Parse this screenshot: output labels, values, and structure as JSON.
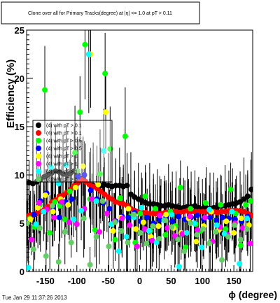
{
  "title": "Clone  over all for Primary Tracks(degree) at |η| <= 1.0 at pT > 0.11",
  "timestamp": "Tue Jan 29 11:37:26 2013",
  "chart_data": {
    "type": "scatter",
    "xlabel": "ϕ (degree)",
    "ylabel": "Efficiency (%)",
    "xlim": [
      -180,
      180
    ],
    "ylim": [
      0,
      25
    ],
    "x_ticks": [
      -150,
      -100,
      -50,
      0,
      50,
      100,
      150
    ],
    "x_tick_labels": [
      "-150",
      "-100",
      "-50",
      "0",
      "50",
      "100",
      "150"
    ],
    "y_ticks": [
      0,
      5,
      10,
      15,
      20,
      25
    ],
    "y_tick_labels": [
      "0",
      "5",
      "10",
      "15",
      "20",
      "25"
    ],
    "grid": false,
    "legend_position": "top-left",
    "series": [
      {
        "name": "(4) with pT > 0.1",
        "color": "#000000",
        "x": [
          -176,
          -170,
          -164,
          -158,
          -152,
          -146,
          -140,
          -134,
          -128,
          -122,
          -116,
          -110,
          -104,
          -98,
          -92,
          -86,
          -80,
          -74,
          -68,
          -62,
          -56,
          -50,
          -44,
          -38,
          -32,
          -26,
          -20,
          -14,
          -8,
          -2,
          4,
          10,
          16,
          22,
          28,
          34,
          40,
          46,
          52,
          58,
          64,
          70,
          76,
          82,
          88,
          94,
          100,
          106,
          112,
          118,
          124,
          130,
          136,
          142,
          148,
          154,
          160,
          166,
          172,
          178
        ],
        "y": [
          9.2,
          9.1,
          9.3,
          9.5,
          9.8,
          10.0,
          10.2,
          10.4,
          10.3,
          10.1,
          10.0,
          10.2,
          10.4,
          10.0,
          9.6,
          9.3,
          9.0,
          8.9,
          8.8,
          8.9,
          9.0,
          8.9,
          8.8,
          8.9,
          8.9,
          8.8,
          8.9,
          8.0,
          7.7,
          7.5,
          7.3,
          7.1,
          7.0,
          7.0,
          6.9,
          6.8,
          6.8,
          6.9,
          6.8,
          6.7,
          6.6,
          6.6,
          6.7,
          6.7,
          6.8,
          6.6,
          6.5,
          6.6,
          6.5,
          6.6,
          6.7,
          6.8,
          6.8,
          6.9,
          7.0,
          7.1,
          7.2,
          7.5,
          7.8,
          8.5
        ]
      },
      {
        "name": "(4) with pT > 0.1",
        "color": "#ff0000",
        "x": [
          -176,
          -170,
          -164,
          -158,
          -152,
          -146,
          -140,
          -134,
          -128,
          -122,
          -116,
          -110,
          -104,
          -98,
          -92,
          -86,
          -80,
          -74,
          -68,
          -62,
          -56,
          -50,
          -44,
          -38,
          -32,
          -26,
          -20,
          -14,
          -8,
          -2,
          4,
          10,
          16,
          22,
          28,
          34,
          40,
          46,
          52,
          58,
          64,
          70,
          76,
          82,
          88,
          94,
          100,
          106,
          112,
          118,
          124,
          130,
          136,
          142,
          148,
          154,
          160,
          166,
          172,
          178
        ],
        "y": [
          5.8,
          5.9,
          6.0,
          6.2,
          6.4,
          6.7,
          7.2,
          7.4,
          7.8,
          7.9,
          8.2,
          8.5,
          8.9,
          9.2,
          9.5,
          9.3,
          9.0,
          8.8,
          8.6,
          8.3,
          8.0,
          7.7,
          7.5,
          7.2,
          7.1,
          7.0,
          6.8,
          6.5,
          6.3,
          6.2,
          6.1,
          6.1,
          6.0,
          6.0,
          6.0,
          6.0,
          6.1,
          6.1,
          6.2,
          6.2,
          6.1,
          6.2,
          6.3,
          6.2,
          6.2,
          6.2,
          6.2,
          6.2,
          6.1,
          6.2,
          6.1,
          6.2,
          6.2,
          6.3,
          6.3,
          6.3,
          6.3,
          6.2,
          6.0,
          5.8
        ]
      },
      {
        "name": "(4) with pT > 0.5",
        "color": "#00ff00",
        "x": [
          -175,
          -167,
          -159,
          -151,
          -143,
          -135,
          -127,
          -119,
          -111,
          -103,
          -95,
          -87,
          -79,
          -71,
          -63,
          -55,
          -47,
          -39,
          -31,
          -23,
          -15,
          -7,
          1,
          9,
          17,
          25,
          33,
          41,
          49,
          57,
          65,
          73,
          81,
          89,
          97,
          105,
          113,
          121,
          129,
          137,
          145,
          153,
          161,
          169,
          177
        ],
        "y": [
          5.5,
          4.6,
          6.9,
          18.8,
          4.0,
          7.2,
          6.8,
          5.4,
          8.3,
          12.3,
          16.5,
          23.5,
          7.5,
          4.3,
          10.1,
          20.5,
          12.7,
          3.3,
          7.6,
          14.0,
          5.7,
          3.0,
          6.0,
          7.8,
          4.2,
          6.5,
          5.4,
          3.8,
          6.2,
          4.7,
          8.7,
          2.5,
          6.5,
          4.9,
          4.2,
          7.1,
          3.1,
          5.3,
          6.9,
          4.4,
          8.5,
          6.0,
          2.7,
          6.9,
          7.3
        ]
      },
      {
        "name": "(4) with pT > 0.5",
        "color": "#0000ff",
        "x": [
          -178,
          -168,
          -158,
          -148,
          -138,
          -128,
          -118,
          -108,
          -98,
          -88,
          -78,
          -68,
          -58,
          -48,
          -38,
          -28,
          -18,
          -8,
          2,
          12,
          22,
          32,
          42,
          52,
          62,
          72,
          82,
          92,
          102,
          112,
          122,
          132,
          142,
          152,
          162,
          172
        ],
        "y": [
          5.1,
          5.9,
          7.3,
          8.1,
          6.7,
          5.6,
          7.2,
          7.5,
          9.8,
          10.0,
          8.4,
          7.5,
          7.1,
          6.5,
          5.2,
          5.7,
          5.6,
          6.1,
          5.2,
          5.6,
          5.0,
          5.4,
          5.6,
          5.2,
          5.7,
          5.4,
          5.6,
          5.8,
          5.4,
          5.6,
          5.3,
          5.6,
          5.5,
          5.4,
          5.2,
          5.7
        ]
      },
      {
        "name": "(4) with pT > 1",
        "color": "#ffff00",
        "x": [
          -174,
          -162,
          -150,
          -138,
          -126,
          -114,
          -102,
          -90,
          -78,
          -66,
          -54,
          -42,
          -30,
          -18,
          -6,
          6,
          18,
          30,
          42,
          54,
          66,
          78,
          90,
          102,
          114,
          126,
          138,
          150,
          162,
          174
        ],
        "y": [
          5.4,
          6.6,
          7.9,
          6.2,
          7.5,
          6.9,
          8.7,
          10.9,
          22.5,
          9.0,
          16.5,
          4.2,
          5.6,
          6.5,
          4.4,
          5.1,
          3.6,
          4.7,
          5.9,
          4.5,
          4.0,
          5.5,
          3.1,
          4.7,
          6.2,
          4.3,
          5.2,
          4.0,
          5.5,
          4.8
        ]
      },
      {
        "name": "(4) with pT > 1",
        "color": "#ff00ff",
        "x": [
          -172,
          -160,
          -148,
          -136,
          -124,
          -112,
          -100,
          -88,
          -76,
          -64,
          -52,
          -40,
          -28,
          -16,
          -4,
          8,
          20,
          32,
          44,
          56,
          68,
          80,
          92,
          104,
          116,
          128,
          140,
          152,
          164,
          176
        ],
        "y": [
          3.3,
          7.1,
          6.4,
          5.6,
          7.2,
          5.1,
          4.9,
          6.5,
          7.5,
          4.1,
          6.0,
          5.2,
          5.5,
          4.8,
          2.6,
          4.4,
          3.2,
          5.8,
          4.5,
          3.7,
          3.9,
          5.7,
          4.3,
          5.6,
          3.1,
          4.6,
          3.8,
          5.0,
          4.5,
          2.9
        ]
      },
      {
        "name": "(4) with pT > 1",
        "color": "#00ffff",
        "x": [
          -177,
          -165,
          -153,
          -141,
          -129,
          -117,
          -105,
          -93,
          -81,
          -69,
          -57,
          -45,
          -33,
          -21,
          -9,
          3,
          15,
          27,
          39,
          51,
          63,
          75,
          87,
          99,
          111,
          123,
          135,
          147,
          159,
          171
        ],
        "y": [
          0.4,
          4.9,
          6.2,
          10.8,
          9.1,
          11.0,
          5.4,
          6.3,
          22.5,
          7.3,
          12.5,
          4.9,
          2.1,
          3.6,
          5.6,
          6.6,
          4.2,
          3.0,
          5.3,
          5.9,
          0.5,
          4.0,
          5.0,
          2.5,
          6.4,
          4.8,
          3.9,
          6.2,
          0.8,
          5.5
        ]
      },
      {
        "name": "(4) with pT > 1",
        "color": "#66cc66",
        "x": [
          -179,
          -169,
          -159,
          -149,
          -139,
          -129,
          -119,
          -109,
          -99,
          -89,
          -79,
          -69,
          -59,
          -49,
          -39,
          -29,
          -19,
          -9,
          1,
          11,
          21,
          31,
          41,
          51,
          61,
          71,
          81,
          91,
          101,
          111,
          121,
          131,
          141,
          151,
          161,
          171
        ],
        "y": [
          5.0,
          2.3,
          4.5,
          1.6,
          6.8,
          1.0,
          4.1,
          3.0,
          10.4,
          5.5,
          0.7,
          3.6,
          7.3,
          2.6,
          5.1,
          4.2,
          3.0,
          5.9,
          4.0,
          2.9,
          4.7,
          3.4,
          5.3,
          4.6,
          3.3,
          2.1,
          5.0,
          3.8,
          4.4,
          2.9,
          4.1,
          1.2,
          3.6,
          4.8,
          3.3,
          4.4
        ]
      }
    ]
  }
}
